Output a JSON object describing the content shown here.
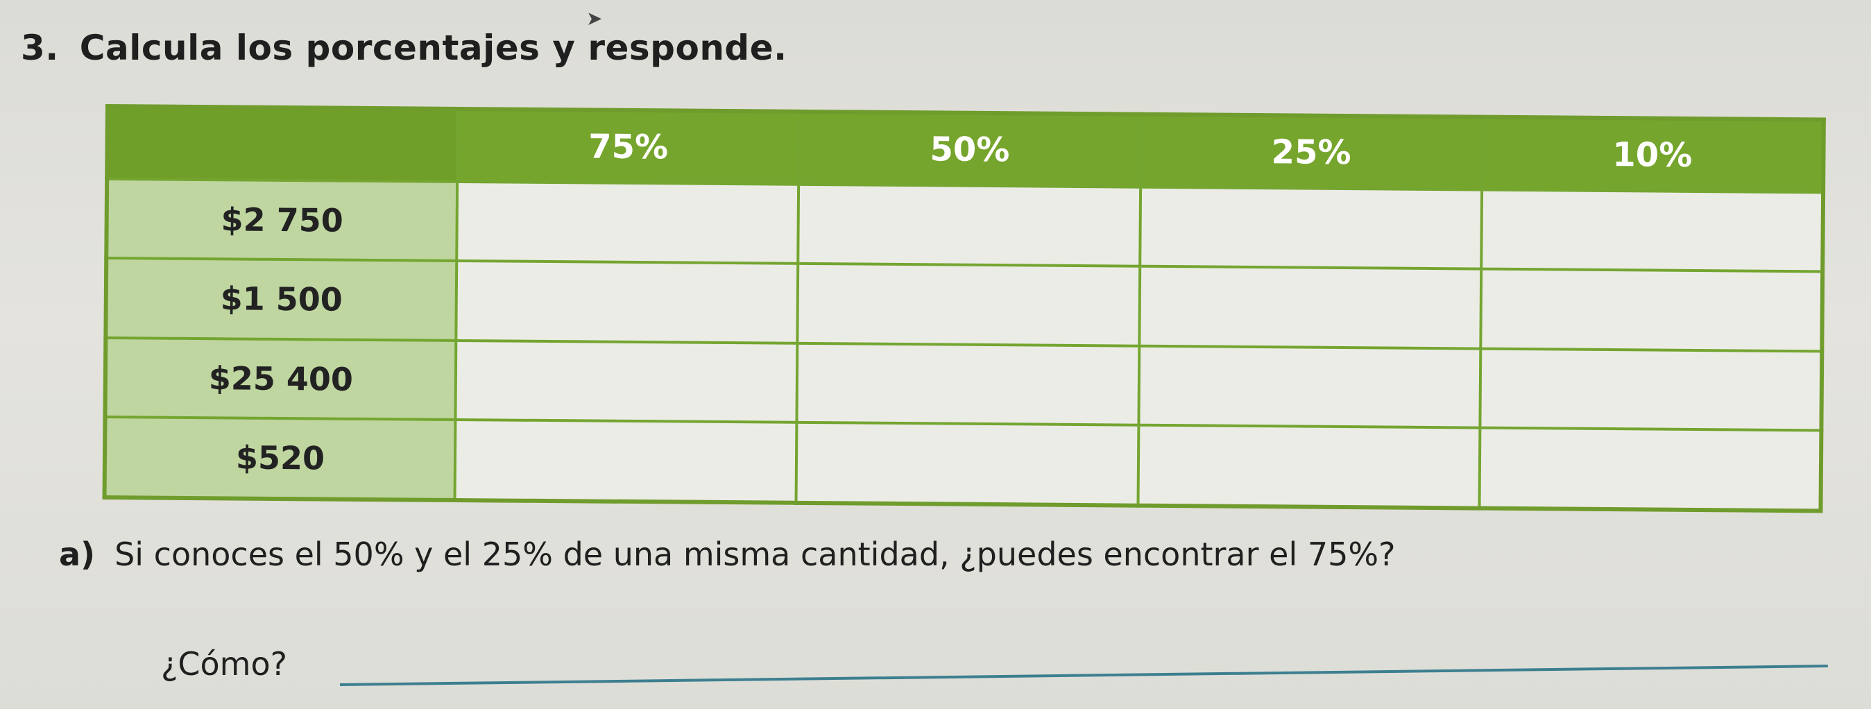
{
  "exercise": {
    "number": "3.",
    "instruction": "Calcula los porcentajes y responde."
  },
  "table": {
    "headers": [
      "75%",
      "50%",
      "25%",
      "10%"
    ],
    "rows": [
      "$2 750",
      "$1 500",
      "$25 400",
      "$520"
    ]
  },
  "question": {
    "letter": "a)",
    "text": "Si conoces el 50% y el 25% de una misma cantidad, ¿puedes encontrar el 75%?",
    "how_label": "¿Cómo?"
  },
  "colors": {
    "header_green": "#75a52c",
    "row_header_green": "#bfd6a0",
    "answer_line": "#3c7f8f"
  }
}
